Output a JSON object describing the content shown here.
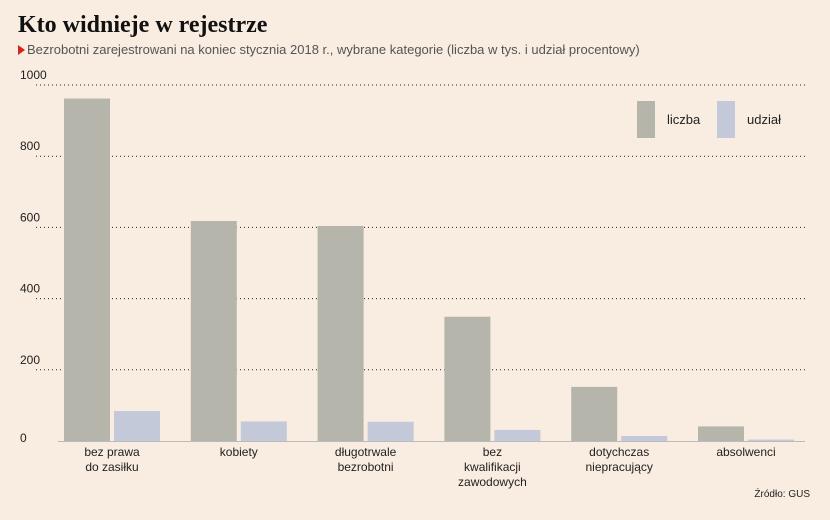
{
  "header": {
    "title": "Kto widnieje w rejestrze",
    "subtitle": "Bezrobotni zarejestrowani na koniec stycznia 2018 r., wybrane kategorie (liczba w tys. i udział procentowy)"
  },
  "footer": {
    "source": "Źródło: GUS"
  },
  "colors": {
    "liczba": "#b6b5ab",
    "udzial": "#c3c9d8",
    "background": "#f9ece0"
  },
  "chart_data": {
    "type": "bar",
    "categories": [
      [
        "bez prawa",
        "do zasiłku"
      ],
      [
        "kobiety"
      ],
      [
        "długotrwale",
        "bezrobotni"
      ],
      [
        "bez",
        "kwalifikacji",
        "zawodowych"
      ],
      [
        "dotychczas",
        "niepracujący"
      ],
      [
        "absolwenci"
      ]
    ],
    "series": [
      {
        "name": "liczba",
        "values": [
          962,
          618,
          604,
          349,
          152,
          41
        ]
      },
      {
        "name": "udział",
        "values": [
          84,
          55,
          54,
          31,
          14,
          4
        ]
      }
    ],
    "ylim": [
      0,
      1000
    ],
    "yticks": [
      "0",
      "200",
      "400",
      "600",
      "800",
      "1000"
    ],
    "grid": true,
    "legend_position": "top-right"
  }
}
